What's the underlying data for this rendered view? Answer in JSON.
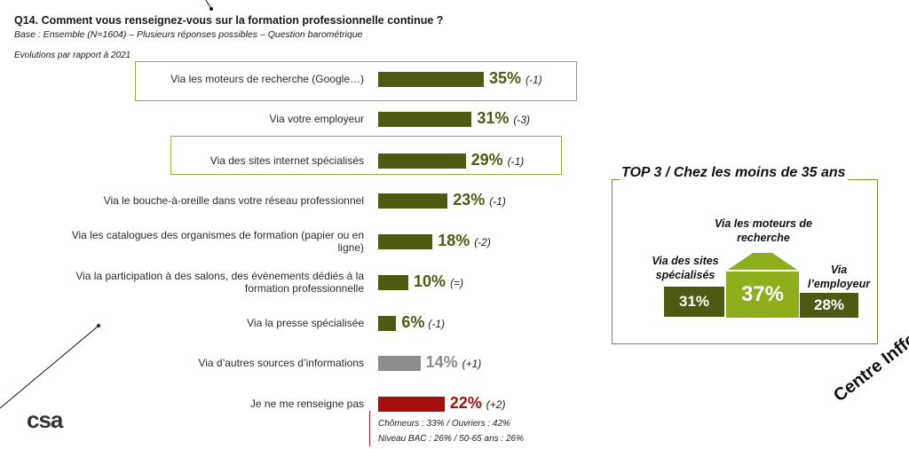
{
  "header": {
    "title": "Q14. Comment vous renseignez-vous sur la formation professionnelle continue ?",
    "base": "Base : Ensemble (N=1604) – Plusieurs réponses possibles – Question barométrique",
    "evolution_note": "Evolutions par rapport à 2021"
  },
  "colors": {
    "green": "#4d5a12",
    "grey": "#8c8c8c",
    "red": "#a50f0f",
    "highlight": "#9aae3f",
    "light_green": "#8fae1b"
  },
  "chart_data": {
    "type": "bar",
    "orientation": "horizontal",
    "categories": [
      "Via les moteurs de recherche (Google…)",
      "Via votre employeur",
      "Via des sites internet spécialisés",
      "Via le bouche-à-oreille dans votre réseau professionnel",
      "Via les catalogues des organismes de formation (papier ou en ligne)",
      "Via la participation à des salons, des évènements dédiés à la formation professionnelle",
      "Via la presse spécialisée",
      "Via d’autres sources d’informations",
      "Je ne me renseigne pas"
    ],
    "values": [
      35,
      31,
      29,
      23,
      18,
      10,
      6,
      14,
      22
    ],
    "labels": [
      "35%",
      "31%",
      "29%",
      "23%",
      "18%",
      "10%",
      "6%",
      "14%",
      "22%"
    ],
    "evolutions": [
      "(-1)",
      "(-3)",
      "(-1)",
      "(-1)",
      "(-2)",
      "(=)",
      "(-1)",
      "(+1)",
      "(+2)"
    ],
    "bar_colors": [
      "green",
      "green",
      "green",
      "green",
      "green",
      "green",
      "green",
      "grey",
      "red"
    ],
    "highlighted": [
      true,
      false,
      true,
      false,
      false,
      false,
      false,
      false,
      false
    ],
    "xlim": [
      0,
      40
    ]
  },
  "footnote": {
    "line1": "Chômeurs : 33% / Ouvriers : 42%",
    "line2": "Niveau BAC : 26% / 50-65 ans : 26%"
  },
  "top3": {
    "title": "TOP 3 / Chez les moins de 35 ans",
    "items": [
      {
        "label": "Via les moteurs de recherche",
        "value": "37%"
      },
      {
        "label": "Via des sites spécialisés",
        "value": "31%"
      },
      {
        "label": "Via l’employeur",
        "value": "28%"
      }
    ]
  },
  "branding": {
    "logo": "csa",
    "corner_text": "Centre Inffo"
  }
}
